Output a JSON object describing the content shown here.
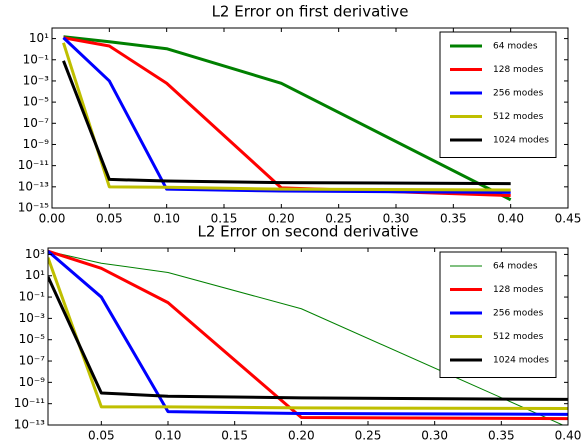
{
  "chart_data": [
    {
      "type": "line",
      "title": "L2 Error on first derivative",
      "yscale": "log",
      "legend": "upper right",
      "x": [
        0.01,
        0.05,
        0.1,
        0.2,
        0.4
      ],
      "xlim": [
        0,
        0.45
      ],
      "xticks": [
        {
          "value": 0,
          "label": "0.00"
        },
        0.05,
        {
          "value": 0.1,
          "label": "0.10"
        },
        0.15,
        {
          "value": 0.2,
          "label": "0.20"
        },
        0.25,
        {
          "value": 0.3,
          "label": "0.30"
        },
        0.35,
        {
          "value": 0.4,
          "label": "0.40"
        },
        0.45
      ],
      "ylim": [
        1e-15,
        100
      ],
      "yticks": [
        {
          "value": 10,
          "label": "10¹"
        },
        {
          "value": 0.1,
          "label": "10⁻¹"
        },
        {
          "value": 0.001,
          "label": "10⁻³"
        },
        {
          "value": 1e-05,
          "label": "10⁻⁵"
        },
        {
          "value": 1e-07,
          "label": "10⁻⁷"
        },
        {
          "value": 1e-09,
          "label": "10⁻⁹"
        },
        {
          "value": 1e-11,
          "label": "10⁻¹¹"
        },
        {
          "value": 1e-13,
          "label": "10⁻¹³"
        },
        {
          "value": 1e-15,
          "label": "10⁻¹⁵"
        }
      ],
      "series": [
        {
          "name": "64 modes",
          "color": "#008000",
          "width": 3,
          "values": [
            15,
            5,
            1.1,
            0.0006,
            6e-15
          ]
        },
        {
          "name": "128 modes",
          "color": "#ff0000",
          "width": 3,
          "values": [
            12,
            2,
            0.0006,
            8e-14,
            1.5e-14
          ]
        },
        {
          "name": "256 modes",
          "color": "#0000ff",
          "width": 3,
          "values": [
            12,
            0.001,
            6e-14,
            4e-14,
            3e-14
          ]
        },
        {
          "name": "512 modes",
          "color": "#bfbf00",
          "width": 3,
          "values": [
            4,
            1e-13,
            9e-14,
            6e-14,
            5e-14
          ]
        },
        {
          "name": "1024 modes",
          "color": "#000000",
          "width": 3,
          "values": [
            0.08,
            5e-13,
            3.5e-13,
            2.5e-13,
            2e-13
          ]
        }
      ]
    },
    {
      "type": "line",
      "title": "L2 Error on second derivative",
      "yscale": "log",
      "legend": "upper right",
      "x": [
        0.01,
        0.05,
        0.1,
        0.2,
        0.4
      ],
      "xlim": [
        0.01,
        0.4
      ],
      "xticks": [
        0.05,
        {
          "value": 0.1,
          "label": "0.10"
        },
        0.15,
        {
          "value": 0.2,
          "label": "0.20"
        },
        0.25,
        {
          "value": 0.3,
          "label": "0.30"
        },
        0.35,
        {
          "value": 0.4,
          "label": "0.40"
        }
      ],
      "ylim": [
        1e-13,
        4000
      ],
      "yticks": [
        {
          "value": 1000,
          "label": "10³"
        },
        {
          "value": 10,
          "label": "10¹"
        },
        {
          "value": 0.1,
          "label": "10⁻¹"
        },
        {
          "value": 0.001,
          "label": "10⁻³"
        },
        {
          "value": 1e-05,
          "label": "10⁻⁵"
        },
        {
          "value": 1e-07,
          "label": "10⁻⁷"
        },
        {
          "value": 1e-09,
          "label": "10⁻⁹"
        },
        {
          "value": 1e-11,
          "label": "10⁻¹¹"
        },
        {
          "value": 1e-13,
          "label": "10⁻¹³"
        }
      ],
      "series": [
        {
          "name": "64 modes",
          "color": "#008000",
          "width": 1,
          "values": [
            2000,
            150,
            20,
            0.008,
            6e-14
          ]
        },
        {
          "name": "128 modes",
          "color": "#ff0000",
          "width": 3,
          "values": [
            2000,
            50,
            0.03,
            5e-13,
            4e-13
          ]
        },
        {
          "name": "256 modes",
          "color": "#0000ff",
          "width": 3,
          "values": [
            2000,
            0.1,
            1.8e-12,
            1.2e-12,
            1e-12
          ]
        },
        {
          "name": "512 modes",
          "color": "#bfbf00",
          "width": 3,
          "values": [
            500,
            5e-12,
            5e-12,
            4e-12,
            3.5e-12
          ]
        },
        {
          "name": "1024 modes",
          "color": "#000000",
          "width": 3,
          "values": [
            8,
            1e-10,
            5e-11,
            3.5e-11,
            2.5e-11
          ]
        }
      ]
    }
  ]
}
